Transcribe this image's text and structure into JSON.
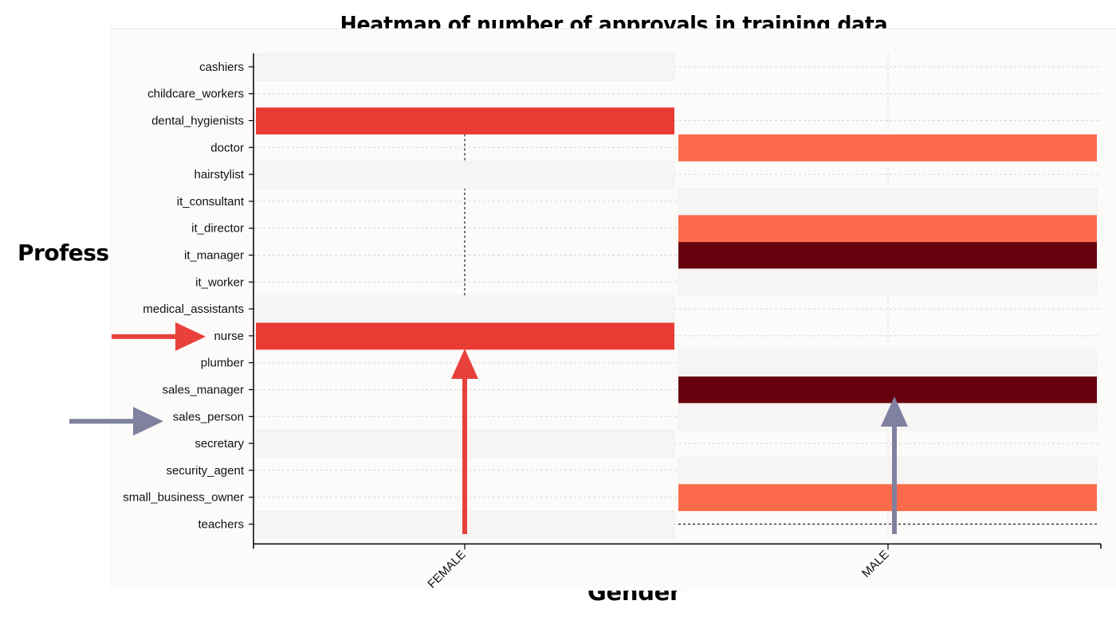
{
  "title": "Heatmap of number of approvals in training data",
  "y_axis_label": "Profession",
  "x_axis_label": "Gender",
  "colors": {
    "background": "#fdfafa",
    "empty_cell": "#f7f4f4",
    "female_arrow": "#e8413b",
    "male_arrow": "#7f819e",
    "scale": [
      "#f7f4f4",
      "#fb6a4a",
      "#e83b33",
      "#67000d"
    ]
  },
  "arrows": [
    {
      "name": "nurse-row-arrow",
      "points_to": "nurse",
      "color": "#e8413b"
    },
    {
      "name": "sales-person-row-arrow",
      "points_to": "sales_person",
      "color": "#7f819e"
    },
    {
      "name": "female-column-arrow",
      "points_to": "FEMALE",
      "color": "#e8413b"
    },
    {
      "name": "male-column-arrow",
      "points_to": "MALE",
      "color": "#7f819e"
    }
  ],
  "chart_data": {
    "type": "heatmap",
    "x_categories": [
      "FEMALE",
      "MALE"
    ],
    "y_categories": [
      "cashiers",
      "childcare_workers",
      "dental_hygienists",
      "doctor",
      "hairstylist",
      "it_consultant",
      "it_director",
      "it_manager",
      "it_worker",
      "medical_assistants",
      "nurse",
      "plumber",
      "sales_manager",
      "sales_person",
      "secretary",
      "security_agent",
      "small_business_owner",
      "teachers"
    ],
    "values": [
      [
        0,
        null
      ],
      [
        null,
        null
      ],
      [
        2,
        null
      ],
      [
        null,
        1
      ],
      [
        0,
        null
      ],
      [
        null,
        0
      ],
      [
        null,
        1
      ],
      [
        null,
        3
      ],
      [
        null,
        0
      ],
      [
        0,
        null
      ],
      [
        2,
        null
      ],
      [
        null,
        0
      ],
      [
        null,
        3
      ],
      [
        null,
        0
      ],
      [
        0,
        null
      ],
      [
        null,
        0
      ],
      [
        null,
        1
      ],
      [
        0,
        null
      ]
    ],
    "legend": "none"
  }
}
